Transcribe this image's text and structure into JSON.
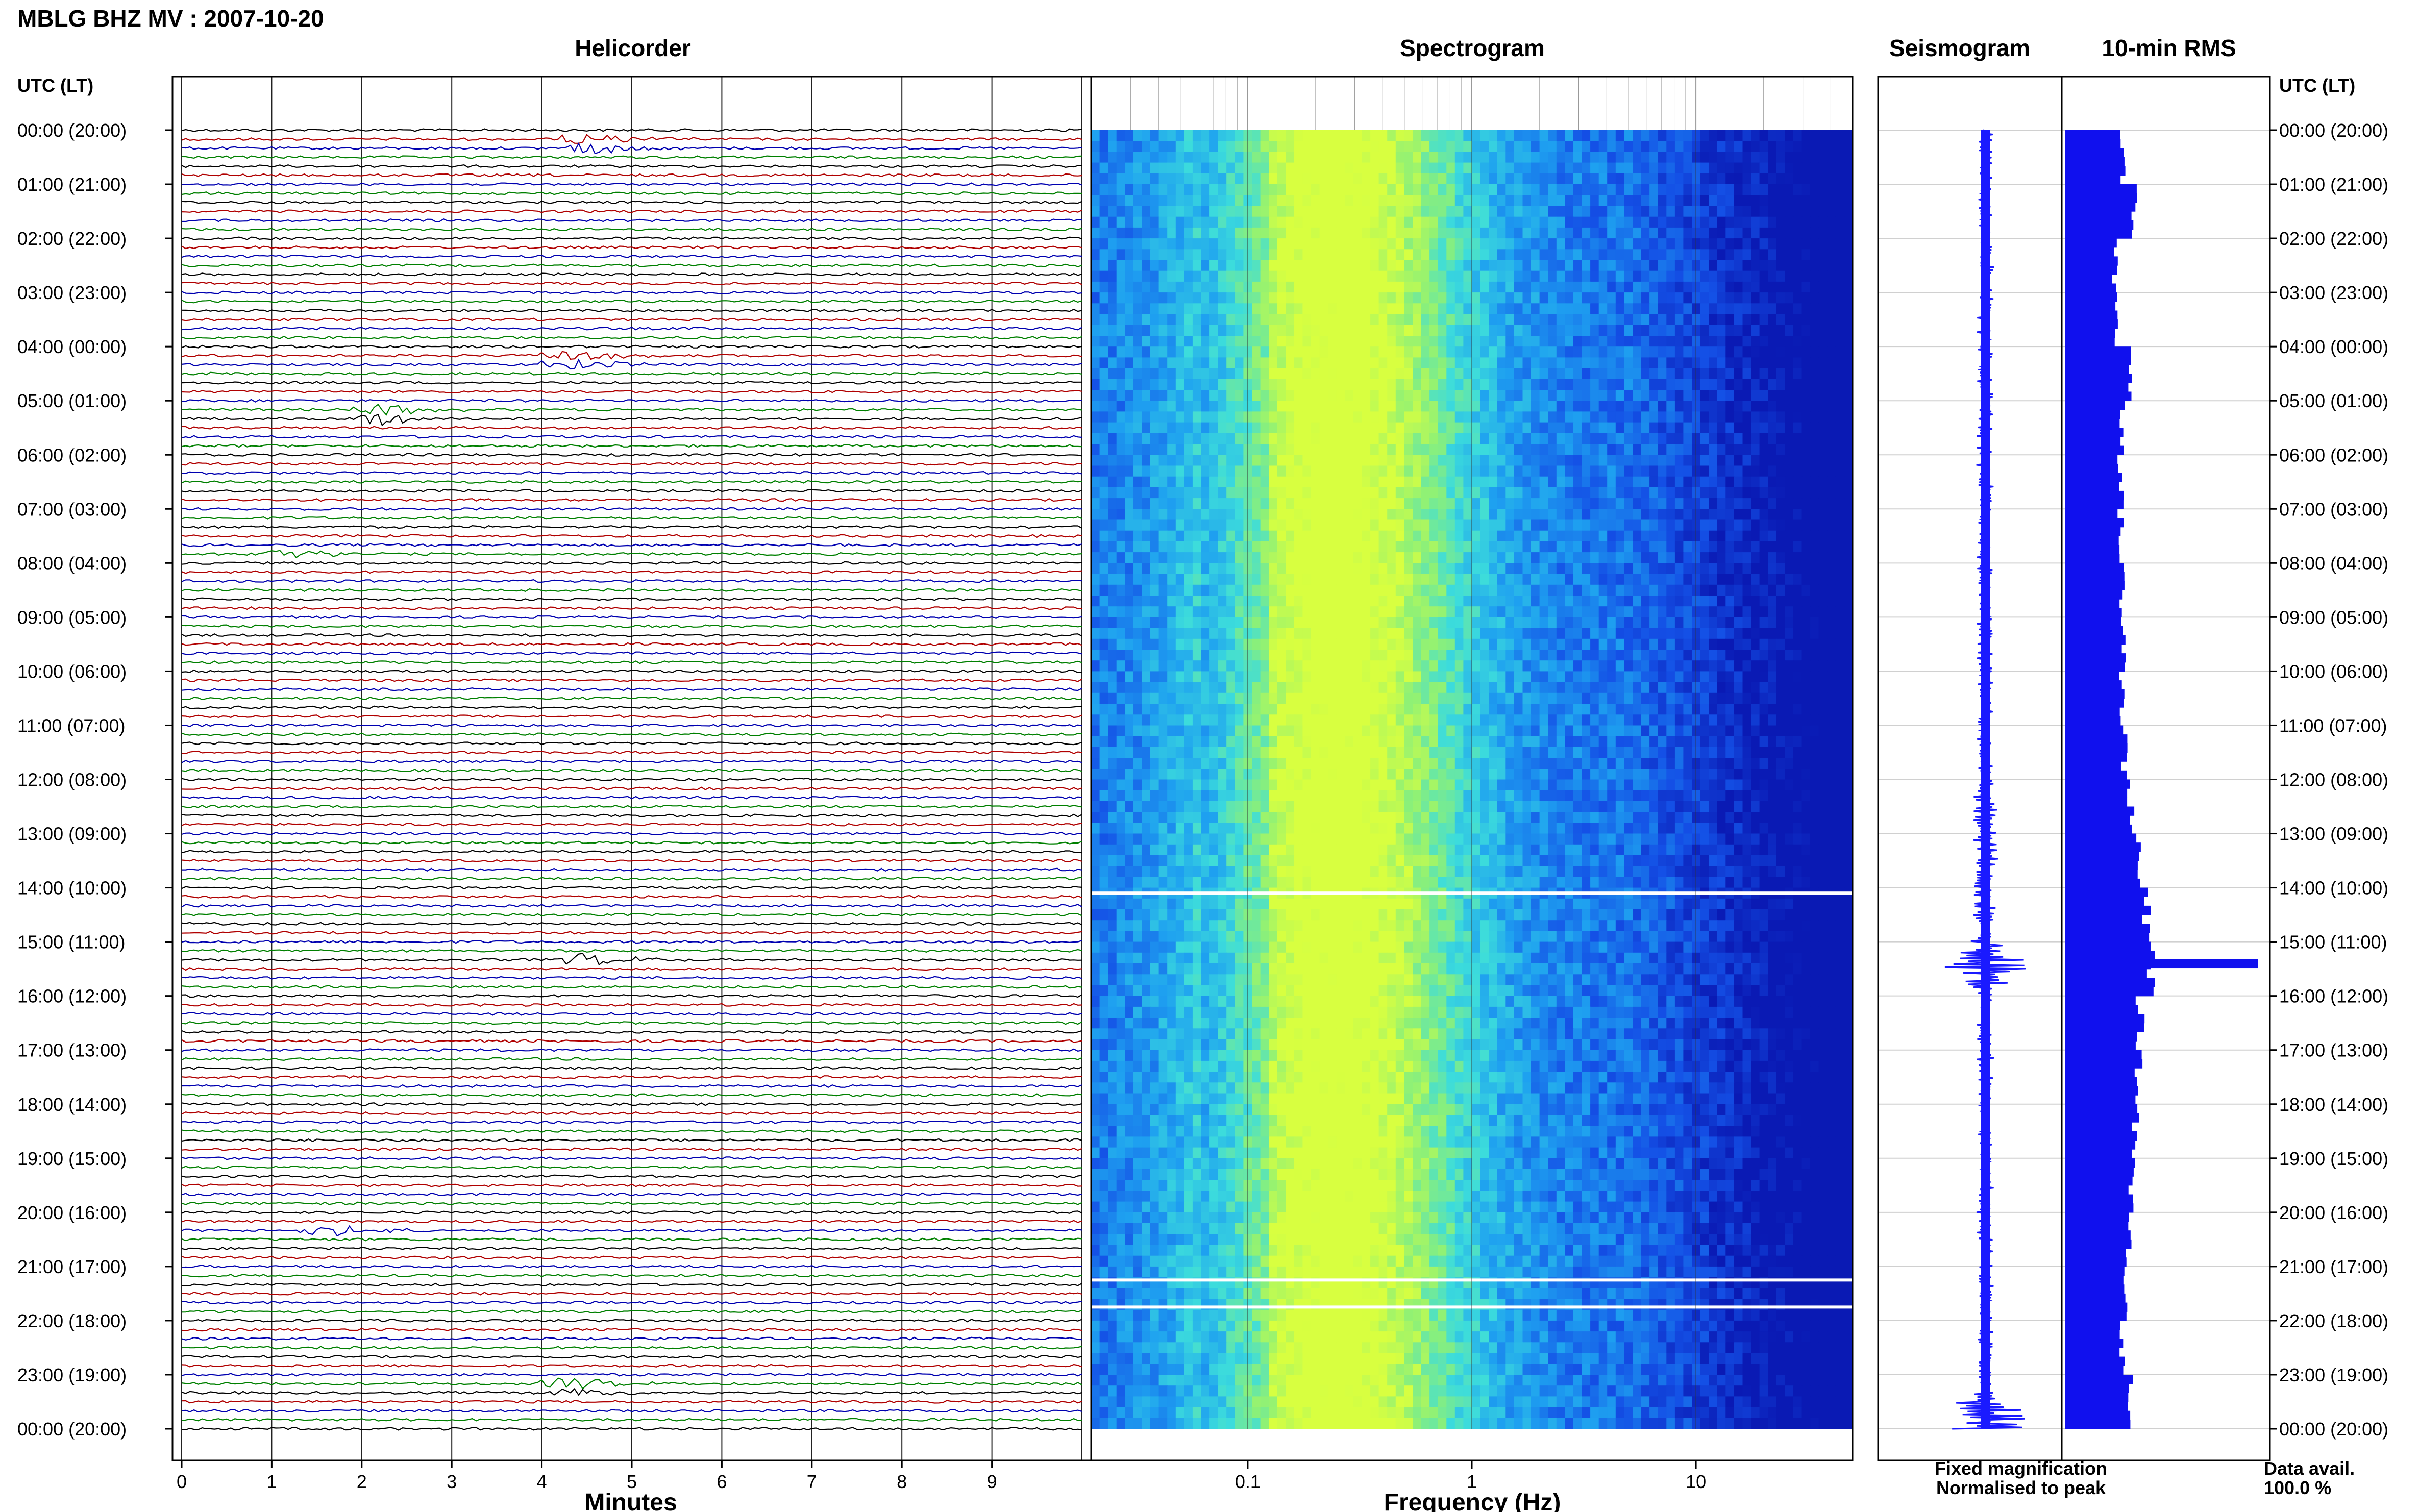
{
  "header": {
    "title": "MBLG BHZ MV : 2007-10-20"
  },
  "panels": {
    "helicorder": "Helicorder",
    "spectrogram": "Spectrogram",
    "seismogram": "Seismogram",
    "rms": "10-min RMS"
  },
  "axes": {
    "time_label": "UTC (LT)",
    "minutes_label": "Minutes",
    "frequency_label": "Frequency (Hz)"
  },
  "legend": {
    "fixed": "Fixed magnification",
    "normalised": "Normalised to peak",
    "fixed_color": "#1010e0",
    "normalised_color": "#e01010"
  },
  "availability": {
    "label": "Data avail.",
    "value": "100.0 %"
  },
  "colors": {
    "trace_cycle": [
      "#000000",
      "#b00000",
      "#0000b0",
      "#008000"
    ],
    "spectrogram_low": "#0a1ac8",
    "spectrogram_high": "#d8ff40",
    "seismogram": "#1a1aff",
    "rms_bar": "#1010ee"
  },
  "chart_data": [
    {
      "type": "line",
      "name": "helicorder",
      "title": "Helicorder",
      "xlabel": "Minutes",
      "xlim": [
        0,
        10
      ],
      "x_ticks": [
        "0",
        "1",
        "2",
        "3",
        "4",
        "5",
        "6",
        "7",
        "8",
        "9"
      ],
      "ylabel": "UTC (LT)",
      "y_ticks": [
        "00:00 (20:00)",
        "01:00 (21:00)",
        "02:00 (22:00)",
        "03:00 (23:00)",
        "04:00 (00:00)",
        "05:00 (01:00)",
        "06:00 (02:00)",
        "07:00 (03:00)",
        "08:00 (04:00)",
        "09:00 (05:00)",
        "10:00 (06:00)",
        "11:00 (07:00)",
        "12:00 (08:00)",
        "13:00 (09:00)",
        "14:00 (10:00)",
        "15:00 (11:00)",
        "16:00 (12:00)",
        "17:00 (13:00)",
        "18:00 (14:00)",
        "19:00 (15:00)",
        "20:00 (16:00)",
        "21:00 (17:00)",
        "22:00 (18:00)",
        "23:00 (19:00)",
        "00:00 (20:00)"
      ],
      "traces_per_hour": 6,
      "events": [
        {
          "hour": 0.25,
          "minute": 4.5
        },
        {
          "hour": 4.25,
          "minute": 4.3
        },
        {
          "hour": 5.25,
          "minute": 2.2
        },
        {
          "hour": 7.9,
          "minute": 1.2
        },
        {
          "hour": 15.3,
          "minute": 4.5
        },
        {
          "hour": 20.3,
          "minute": 1.6
        },
        {
          "hour": 23.25,
          "minute": 4.3
        }
      ],
      "grid": true
    },
    {
      "type": "heatmap",
      "name": "spectrogram",
      "title": "Spectrogram",
      "xlabel": "Frequency (Hz)",
      "x_scale": "log",
      "xlim": [
        0.02,
        50
      ],
      "x_ticks": [
        "0.1",
        "1",
        "10"
      ],
      "peak_frequency_hz": 0.25,
      "gaps_hours": [
        14.1,
        21.25,
        21.75
      ],
      "grid": true
    },
    {
      "type": "line",
      "name": "seismogram",
      "title": "Seismogram",
      "peak_hours": [
        15.4,
        23.8
      ]
    },
    {
      "type": "bar",
      "name": "rms",
      "title": "10-min RMS",
      "categories": [
        "00:00",
        "01:00",
        "02:00",
        "03:00",
        "04:00",
        "05:00",
        "06:00",
        "07:00",
        "08:00",
        "09:00",
        "10:00",
        "11:00",
        "12:00",
        "13:00",
        "14:00",
        "15:00",
        "16:00",
        "17:00",
        "18:00",
        "19:00",
        "20:00",
        "21:00",
        "22:00",
        "23:00"
      ],
      "values": [
        0.3,
        0.36,
        0.26,
        0.27,
        0.34,
        0.3,
        0.29,
        0.29,
        0.3,
        0.31,
        0.3,
        0.31,
        0.34,
        0.38,
        0.42,
        0.45,
        0.39,
        0.38,
        0.37,
        0.35,
        0.33,
        0.32,
        0.3,
        0.34
      ],
      "peak": {
        "hour": 15.4,
        "value": 1.0
      }
    }
  ]
}
